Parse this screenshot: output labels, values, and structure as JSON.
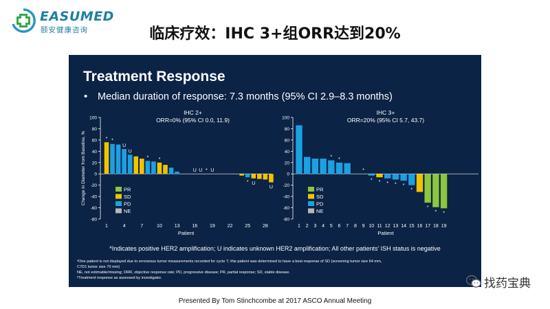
{
  "logo": {
    "name": "EASUMED",
    "subtitle": "颐安健康咨询",
    "icon": "cross-logo-icon"
  },
  "slide_title": "临床疗效：IHC 3+组ORR达到20%",
  "slide": {
    "heading": "Treatment Response",
    "bullet": "•",
    "bullet_text": "Median duration of response: 7.3 months (95% CI 2.9–8.3 months)",
    "footnote_main": "*Indicates positive HER2 amplification; U indicates unknown HER2 amplification; All other patients' ISH status is negative",
    "fine_print": [
      "ᵃOne patient is not displayed due to erroneous tumor measurements recorded for cycle 7; this patient was determined to have a best response of SD (screening tumor size 64 mm,",
      "C7D1 tumor size 70 mm)",
      "NE, not estimable/missing; ORR, objective response rate; PD, progressive disease; PR, partial response; SD, stable disease.",
      "ᵇTreatment response as assessed by investigator."
    ]
  },
  "colors": {
    "panel": "#0b2345",
    "PR": "#8dc63f",
    "SD": "#f2c300",
    "PD": "#1ba1e2",
    "NE": "#b8b8b8",
    "text": "#ffffff"
  },
  "chart_data": [
    {
      "type": "bar",
      "title": "IHC 2+",
      "subtitle": "ORR=0% (95% CI 0.0, 11.9)",
      "ylabel": "Change in Diameter from Baseline, %",
      "xlabel": "Patient",
      "ylim": [
        -80,
        100
      ],
      "yticks": [
        100,
        80,
        60,
        40,
        20,
        0,
        -20,
        -40,
        -60,
        -80
      ],
      "xticks": [
        "1",
        "4",
        "7",
        "10",
        "13",
        "16",
        "19",
        "22",
        "25",
        "28"
      ],
      "xtick_positions": [
        1,
        4,
        7,
        10,
        13,
        16,
        19,
        22,
        25,
        28
      ],
      "legend": [
        "PR",
        "SD",
        "PD",
        "NE"
      ],
      "legend_position": "bottom-left",
      "bars": [
        {
          "patient": 1,
          "value": 56,
          "response": "SD",
          "mark": "*"
        },
        {
          "patient": 2,
          "value": 53,
          "response": "PD",
          "mark": "*"
        },
        {
          "patient": 3,
          "value": 52,
          "response": "PD",
          "mark": ""
        },
        {
          "patient": 4,
          "value": 44,
          "response": "PD",
          "mark": "U"
        },
        {
          "patient": 5,
          "value": 34,
          "response": "PD",
          "mark": "U"
        },
        {
          "patient": 6,
          "value": 31,
          "response": "SD",
          "mark": ""
        },
        {
          "patient": 7,
          "value": 27,
          "response": "SD",
          "mark": ""
        },
        {
          "patient": 8,
          "value": 23,
          "response": "PD",
          "mark": "*"
        },
        {
          "patient": 9,
          "value": 22,
          "response": "PD",
          "mark": ""
        },
        {
          "patient": 10,
          "value": 20,
          "response": "SD",
          "mark": "*"
        },
        {
          "patient": 11,
          "value": 16,
          "response": "SD",
          "mark": ""
        },
        {
          "patient": 12,
          "value": 11,
          "response": "PD",
          "mark": ""
        },
        {
          "patient": 13,
          "value": 4,
          "response": "PD",
          "mark": ""
        },
        {
          "patient": 14,
          "value": 0,
          "response": "PD",
          "mark": ""
        },
        {
          "patient": 15,
          "value": 0,
          "response": "PD",
          "mark": ""
        },
        {
          "patient": 16,
          "value": 0,
          "response": "PD",
          "mark": "U"
        },
        {
          "patient": 17,
          "value": 0,
          "response": "PD",
          "mark": "U"
        },
        {
          "patient": 18,
          "value": 0,
          "response": "PD",
          "mark": "*"
        },
        {
          "patient": 19,
          "value": 0,
          "response": "PD",
          "mark": "U"
        },
        {
          "patient": 20,
          "value": 0,
          "response": "PD",
          "mark": ""
        },
        {
          "patient": 21,
          "value": 0,
          "response": "PD",
          "mark": ""
        },
        {
          "patient": 22,
          "value": 0,
          "response": "PD",
          "mark": ""
        },
        {
          "patient": 23,
          "value": 0,
          "response": "PD",
          "mark": ""
        },
        {
          "patient": 24,
          "value": -3,
          "response": "SD",
          "mark": ""
        },
        {
          "patient": 25,
          "value": -6,
          "response": "PD",
          "mark": "*"
        },
        {
          "patient": 26,
          "value": -8,
          "response": "SD",
          "mark": "U"
        },
        {
          "patient": 27,
          "value": -9,
          "response": "SD",
          "mark": ""
        },
        {
          "patient": 28,
          "value": -10,
          "response": "SD",
          "mark": ""
        },
        {
          "patient": 29,
          "value": -15,
          "response": "SD",
          "mark": "U"
        }
      ]
    },
    {
      "type": "bar",
      "title": "IHC 3+",
      "subtitle": "ORR=20% (95% CI 5.7, 43.7)",
      "ylabel": "",
      "xlabel": "Patient",
      "ylim": [
        -80,
        100
      ],
      "yticks": [
        100,
        80,
        60,
        40,
        20,
        0,
        -20,
        -40,
        -60,
        -80
      ],
      "xticks": [
        "1",
        "2",
        "3",
        "4",
        "5",
        "6",
        "7",
        "8",
        "9",
        "10",
        "11",
        "12",
        "13",
        "14",
        "15",
        "16",
        "17",
        "18",
        "19"
      ],
      "xtick_positions": [
        1,
        2,
        3,
        4,
        5,
        6,
        7,
        8,
        9,
        10,
        11,
        12,
        13,
        14,
        15,
        16,
        17,
        18,
        19
      ],
      "legend": [
        "PR",
        "SD",
        "PD",
        "NE"
      ],
      "legend_position": "bottom-left",
      "bars": [
        {
          "patient": 1,
          "value": 86,
          "response": "PD",
          "mark": ""
        },
        {
          "patient": 2,
          "value": 30,
          "response": "PD",
          "mark": ""
        },
        {
          "patient": 3,
          "value": 27,
          "response": "PD",
          "mark": ""
        },
        {
          "patient": 4,
          "value": 27,
          "response": "PD",
          "mark": ""
        },
        {
          "patient": 5,
          "value": 24,
          "response": "PD",
          "mark": "*"
        },
        {
          "patient": 6,
          "value": 20,
          "response": "PD",
          "mark": "*"
        },
        {
          "patient": 7,
          "value": 19,
          "response": "PD",
          "mark": ""
        },
        {
          "patient": 8,
          "value": 0,
          "response": "PD",
          "mark": ""
        },
        {
          "patient": 9,
          "value": 0,
          "response": "PD",
          "mark": "*"
        },
        {
          "patient": 10,
          "value": -3,
          "response": "PD",
          "mark": "*"
        },
        {
          "patient": 11,
          "value": -6,
          "response": "SD",
          "mark": "*"
        },
        {
          "patient": 12,
          "value": -8,
          "response": "PD",
          "mark": "*"
        },
        {
          "patient": 13,
          "value": -10,
          "response": "PD",
          "mark": "*"
        },
        {
          "patient": 14,
          "value": -12,
          "response": "PD",
          "mark": "*"
        },
        {
          "patient": 15,
          "value": -20,
          "response": "PD",
          "mark": "*"
        },
        {
          "patient": 16,
          "value": -32,
          "response": "SD",
          "mark": ""
        },
        {
          "patient": 17,
          "value": -51,
          "response": "PR",
          "mark": "*"
        },
        {
          "patient": 18,
          "value": -59,
          "response": "PR",
          "mark": "*"
        },
        {
          "patient": 19,
          "value": -61,
          "response": "PR",
          "mark": "*"
        }
      ]
    }
  ],
  "footer": "Presented By Tom Stinchcombe at 2017 ASCO Annual Meeting",
  "watermark": {
    "icon": "wechat-icon",
    "text": "找药宝典"
  }
}
